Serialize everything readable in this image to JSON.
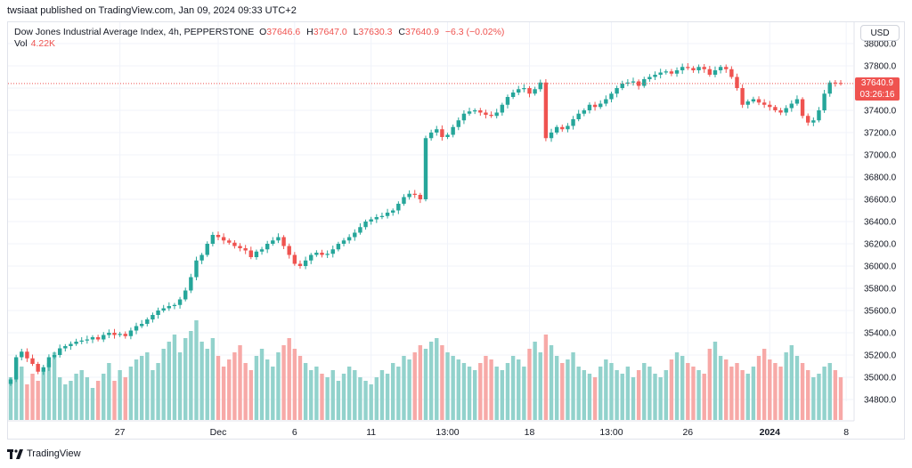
{
  "header": {
    "publisher": "twsiaat published on TradingView.com, Jan 09, 2024 09:33 UTC+2"
  },
  "legend": {
    "symbol": "Dow Jones Industrial Average Index, 4h, PEPPERSTONE",
    "open_key": "O",
    "open": "37646.6",
    "high_key": "H",
    "high": "37647.0",
    "low_key": "L",
    "low": "37630.3",
    "close_key": "C",
    "close": "37640.9",
    "change": "−6.3 (−0.02%)",
    "vol_label": "Vol",
    "vol_value": "4.22K"
  },
  "currency_button": "USD",
  "price_tag": {
    "price": "37640.9",
    "countdown": "03:26:16"
  },
  "footer": {
    "brand": "TradingView"
  },
  "colors": {
    "up": "#26a69a",
    "down": "#ef5350",
    "vol_up": "#92d2cc",
    "vol_down": "#f7a9a7",
    "grid": "#f0f3fa",
    "text": "#131722"
  },
  "chart_data": {
    "type": "candlestick",
    "title": "Dow Jones Industrial Average Index, 4h, PEPPERSTONE",
    "yaxis": {
      "ticks": [
        "38000.0",
        "37800.0",
        "37600.0",
        "37400.0",
        "37200.0",
        "37000.0",
        "36800.0",
        "36600.0",
        "36400.0",
        "36200.0",
        "36000.0",
        "35800.0",
        "35600.0",
        "35400.0",
        "35200.0",
        "35000.0",
        "34800.0"
      ],
      "ylim": [
        34750,
        38000
      ]
    },
    "xaxis": {
      "tick_labels": [
        "27",
        "Dec",
        "6",
        "11",
        "13:00",
        "18",
        "13:00",
        "26",
        "2024",
        "8"
      ],
      "tick_index": [
        20,
        38,
        52,
        66,
        80,
        95,
        110,
        124,
        139,
        153
      ]
    },
    "last_price": 37640.9,
    "grid": true,
    "closes": [
      34980,
      35180,
      35230,
      35170,
      35120,
      35050,
      35090,
      35180,
      35200,
      35260,
      35280,
      35300,
      35320,
      35330,
      35340,
      35360,
      35340,
      35380,
      35400,
      35380,
      35390,
      35370,
      35420,
      35460,
      35480,
      35520,
      35560,
      35600,
      35620,
      35640,
      35650,
      35700,
      35780,
      35900,
      36050,
      36100,
      36200,
      36280,
      36260,
      36230,
      36210,
      36180,
      36160,
      36140,
      36080,
      36130,
      36150,
      36200,
      36230,
      36260,
      36180,
      36100,
      36020,
      36000,
      36050,
      36100,
      36120,
      36100,
      36110,
      36150,
      36200,
      36230,
      36260,
      36300,
      36350,
      36400,
      36420,
      36440,
      36450,
      36480,
      36500,
      36560,
      36620,
      36650,
      36640,
      36600,
      37150,
      37200,
      37230,
      37160,
      37180,
      37250,
      37310,
      37370,
      37390,
      37400,
      37380,
      37360,
      37350,
      37380,
      37450,
      37520,
      37560,
      37590,
      37600,
      37550,
      37590,
      37650,
      37150,
      37200,
      37250,
      37230,
      37260,
      37320,
      37370,
      37400,
      37450,
      37430,
      37460,
      37500,
      37550,
      37600,
      37640,
      37650,
      37660,
      37620,
      37680,
      37700,
      37720,
      37740,
      37750,
      37730,
      37760,
      37790,
      37780,
      37760,
      37790,
      37770,
      37720,
      37760,
      37790,
      37770,
      37700,
      37600,
      37450,
      37480,
      37500,
      37470,
      37450,
      37430,
      37400,
      37380,
      37420,
      37460,
      37500,
      37350,
      37290,
      37310,
      37400,
      37550,
      37650,
      37646,
      37641
    ],
    "volumes": [
      12,
      17,
      15,
      10,
      13,
      11,
      14,
      16,
      19,
      12,
      10,
      11,
      13,
      14,
      12,
      9,
      11,
      13,
      16,
      11,
      14,
      12,
      15,
      17,
      18,
      19,
      14,
      16,
      20,
      22,
      24,
      19,
      23,
      25,
      28,
      22,
      20,
      23,
      18,
      15,
      17,
      19,
      21,
      16,
      14,
      18,
      20,
      17,
      15,
      19,
      21,
      23,
      20,
      18,
      16,
      14,
      15,
      13,
      12,
      14,
      11,
      13,
      15,
      14,
      12,
      11,
      10,
      12,
      14,
      13,
      16,
      15,
      18,
      17,
      19,
      21,
      20,
      22,
      23,
      21,
      19,
      18,
      17,
      16,
      15,
      14,
      16,
      18,
      17,
      15,
      14,
      16,
      18,
      17,
      15,
      20,
      22,
      19,
      24,
      21,
      18,
      16,
      17,
      19,
      15,
      14,
      13,
      12,
      15,
      17,
      16,
      14,
      13,
      15,
      12,
      14,
      16,
      15,
      13,
      12,
      14,
      17,
      19,
      18,
      16,
      15,
      14,
      13,
      20,
      22,
      18,
      17,
      15,
      16,
      14,
      13,
      15,
      18,
      20,
      17,
      16,
      15,
      19,
      21,
      18,
      16,
      14,
      12,
      13,
      15,
      16,
      14,
      12
    ]
  }
}
